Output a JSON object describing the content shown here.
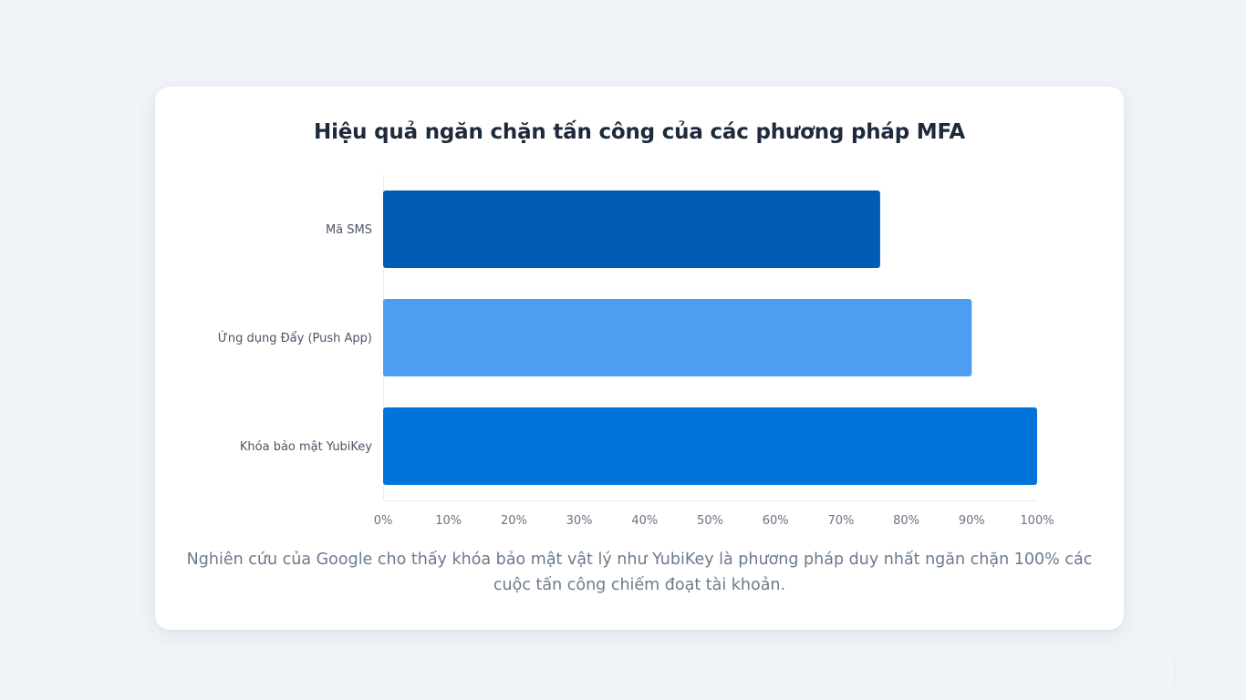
{
  "chart_data": {
    "type": "bar",
    "orientation": "horizontal",
    "title": "Hiệu quả ngăn chặn tấn công của các phương pháp MFA",
    "categories": [
      "Mã SMS",
      "Ứng dụng Đẩy (Push App)",
      "Khóa bảo mật YubiKey"
    ],
    "values": [
      76,
      90,
      100
    ],
    "colors": [
      "#005cb5",
      "#4d9ef0",
      "#0074d9"
    ],
    "xlim": [
      0,
      100
    ],
    "xticks": [
      "0%",
      "10%",
      "20%",
      "30%",
      "40%",
      "50%",
      "60%",
      "70%",
      "80%",
      "90%",
      "100%"
    ],
    "grid": false,
    "legend": "none"
  },
  "caption": "Nghiên cứu của Google cho thấy khóa bảo mật vật lý như YubiKey là phương pháp duy nhất ngăn chặn 100% các cuộc tấn công chiếm đoạt tài khoản."
}
